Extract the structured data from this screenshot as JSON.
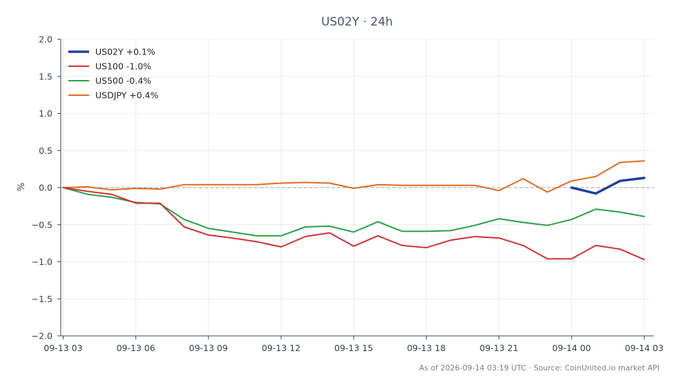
{
  "chart_data": {
    "type": "line",
    "title": "US02Y · 24h",
    "xlabel": "",
    "ylabel": "%",
    "ylim": [
      -2.0,
      2.0
    ],
    "yticks": [
      "2.0",
      "1.5",
      "1.0",
      "0.5",
      "0.0",
      "−0.5",
      "−1.0",
      "−1.5",
      "−2.0"
    ],
    "ytick_values": [
      2.0,
      1.5,
      1.0,
      0.5,
      0.0,
      -0.5,
      -1.0,
      -1.5,
      -2.0
    ],
    "xlim": [
      -0.1,
      24.4
    ],
    "xticks": [
      "09-13 03",
      "09-13 06",
      "09-13 09",
      "09-13 12",
      "09-13 15",
      "09-13 18",
      "09-13 21",
      "09-14 00",
      "09-14 03"
    ],
    "xtick_positions": [
      0,
      3,
      6,
      9,
      12,
      15,
      18,
      21,
      24
    ],
    "grid": true,
    "legend_position": "top-left",
    "zero_line": true,
    "series": [
      {
        "name": "US02Y +0.1%",
        "color": "#1f3f9e",
        "width": 3.5,
        "x": [
          21,
          22,
          23,
          24
        ],
        "values": [
          0.0,
          -0.08,
          0.09,
          0.13
        ]
      },
      {
        "name": "US100 -1.0%",
        "color": "#d03030",
        "width": 2,
        "x": [
          0,
          1,
          2,
          3,
          4,
          5,
          6,
          7,
          8,
          9,
          10,
          11,
          12,
          13,
          14,
          15,
          16,
          17,
          18,
          19,
          20,
          21,
          22,
          23,
          24
        ],
        "values": [
          0.0,
          -0.05,
          -0.09,
          -0.21,
          -0.21,
          -0.53,
          -0.64,
          -0.68,
          -0.73,
          -0.8,
          -0.66,
          -0.61,
          -0.79,
          -0.65,
          -0.78,
          -0.81,
          -0.71,
          -0.66,
          -0.68,
          -0.78,
          -0.96,
          -0.96,
          -0.78,
          -0.83,
          -0.97
        ]
      },
      {
        "name": "US500 -0.4%",
        "color": "#27a045",
        "width": 2,
        "x": [
          0,
          1,
          2,
          3,
          4,
          5,
          6,
          7,
          8,
          9,
          10,
          11,
          12,
          13,
          14,
          15,
          16,
          17,
          18,
          19,
          20,
          21,
          22,
          23,
          24
        ],
        "values": [
          0.0,
          -0.09,
          -0.13,
          -0.2,
          -0.22,
          -0.43,
          -0.55,
          -0.6,
          -0.65,
          -0.65,
          -0.53,
          -0.52,
          -0.6,
          -0.46,
          -0.59,
          -0.59,
          -0.58,
          -0.51,
          -0.42,
          -0.47,
          -0.51,
          -0.43,
          -0.29,
          -0.33,
          -0.39
        ]
      },
      {
        "name": "USDJPY +0.4%",
        "color": "#e06a1e",
        "width": 2,
        "x": [
          0,
          1,
          2,
          3,
          4,
          5,
          6,
          7,
          8,
          9,
          10,
          11,
          12,
          13,
          14,
          15,
          16,
          17,
          18,
          19,
          20,
          21,
          22,
          23,
          24
        ],
        "values": [
          0.0,
          0.01,
          -0.03,
          -0.01,
          -0.02,
          0.04,
          0.04,
          0.04,
          0.04,
          0.06,
          0.07,
          0.06,
          -0.01,
          0.04,
          0.03,
          0.03,
          0.03,
          0.03,
          -0.04,
          0.12,
          -0.06,
          0.09,
          0.15,
          0.34,
          0.36
        ]
      }
    ]
  },
  "footer": "As of 2026-09-14 03:19 UTC · Source: CoinUnited.io market API"
}
